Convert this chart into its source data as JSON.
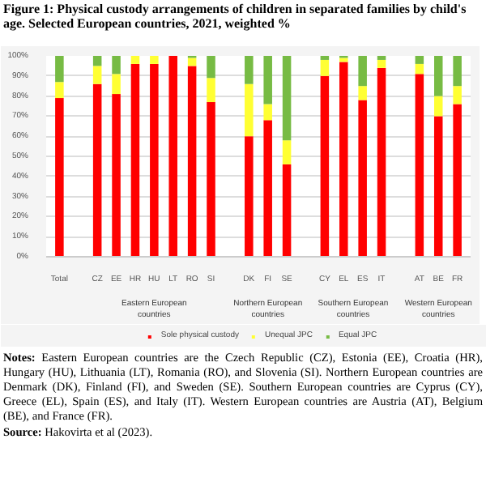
{
  "chart_data": {
    "type": "bar",
    "stacked": true,
    "title": "Figure 1: Physical custody arrangements of children in separated families by child's age. Selected European countries, 2021, weighted %",
    "categories": [
      "Total",
      null,
      "CZ",
      "EE",
      "HR",
      "HU",
      "LT",
      "RO",
      "SI",
      null,
      "DK",
      "FI",
      "SE",
      null,
      "CY",
      "EL",
      "ES",
      "IT",
      null,
      "AT",
      "BE",
      "FR"
    ],
    "series": [
      {
        "name": "Sole physical custody",
        "color": "#ff0000",
        "values": [
          79,
          null,
          86,
          81,
          96,
          96,
          100,
          95,
          77,
          null,
          60,
          68,
          46,
          null,
          90,
          97,
          78,
          94,
          null,
          91,
          70,
          76
        ]
      },
      {
        "name": "Unequal JPC",
        "color": "#ffff33",
        "values": [
          8,
          null,
          9,
          10,
          4,
          4,
          0,
          4,
          12,
          null,
          26,
          8,
          12,
          null,
          8,
          2,
          7,
          4,
          null,
          5,
          10,
          9
        ]
      },
      {
        "name": "Equal JPC",
        "color": "#77bb44",
        "values": [
          13,
          null,
          5,
          9,
          0,
          0,
          0,
          1,
          11,
          null,
          14,
          24,
          42,
          null,
          2,
          1,
          15,
          2,
          null,
          4,
          20,
          15
        ]
      }
    ],
    "ylim": [
      0,
      100
    ],
    "yticks": [
      {
        "value": 0,
        "label": "0%"
      },
      {
        "value": 10,
        "label": "10%"
      },
      {
        "value": 20,
        "label": "20%"
      },
      {
        "value": 30,
        "label": "30%"
      },
      {
        "value": 40,
        "label": "40%"
      },
      {
        "value": 50,
        "label": "50%"
      },
      {
        "value": 60,
        "label": "60%"
      },
      {
        "value": 70,
        "label": "70%"
      },
      {
        "value": 80,
        "label": "80%"
      },
      {
        "value": 90,
        "label": "90%"
      },
      {
        "value": 100,
        "label": "100%"
      }
    ],
    "grid": "y",
    "legend": "bottom",
    "annotations": [
      "Eastern European countries",
      "Northern European countries",
      "Southern European countries",
      "Western European countries",
      "Notes: Eastern European countries are the Czech Republic (CZ), Estonia (EE), Croatia (HR), Hungary (HU), Lithuania (LT), Romania (RO), and Slovenia (SI). Northern European countries are Denmark (DK), Finland (FI), and Sweden (SE). Southern European countries are Cyprus (CY), Greece (EL), Spain (ES), and Italy (IT). Western European countries are Austria (AT), Belgium (BE), and France (FR).",
      "Source: Hakovirta et al (2023)."
    ]
  }
}
